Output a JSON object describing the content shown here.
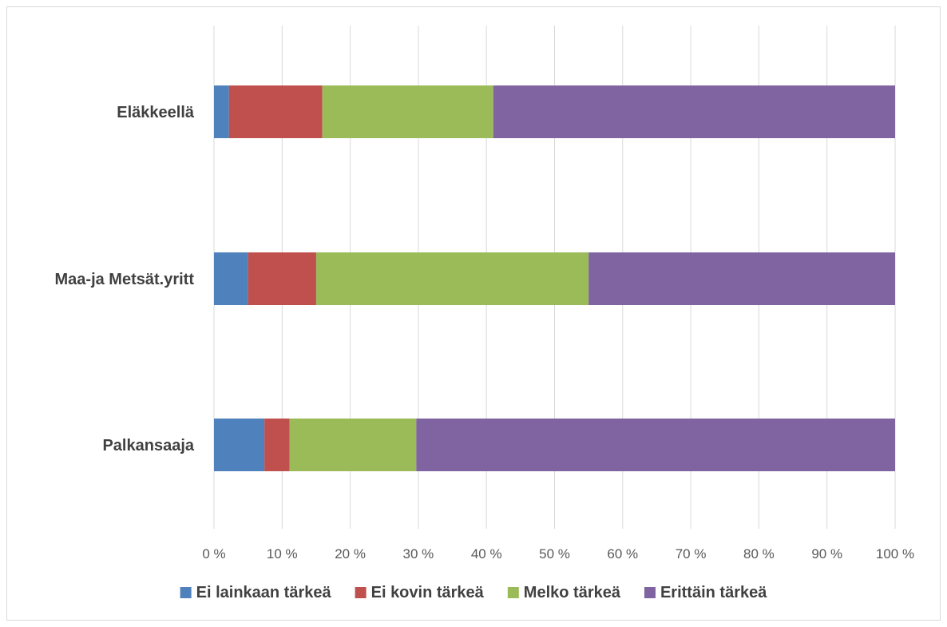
{
  "chart_data": {
    "type": "bar",
    "orientation": "horizontal",
    "stacked": "percent",
    "categories": [
      "Eläkkeellä",
      "Maa-ja Metsät.yritt",
      "Palkansaaja"
    ],
    "series": [
      {
        "name": "Ei lainkaan tärkeä",
        "color": "#4f81bd",
        "values": [
          2.2,
          5.0,
          7.4
        ]
      },
      {
        "name": "Ei kovin tärkeä",
        "color": "#c0504d",
        "values": [
          13.7,
          10.0,
          3.7
        ]
      },
      {
        "name": "Melko tärkeä",
        "color": "#9bbb59",
        "values": [
          25.1,
          40.0,
          18.6
        ]
      },
      {
        "name": "Erittäin tärkeä",
        "color": "#8064a2",
        "values": [
          59.0,
          45.0,
          70.3
        ]
      }
    ],
    "xlim": [
      0,
      100
    ],
    "xticks": [
      "0 %",
      "10 %",
      "20 %",
      "30 %",
      "40 %",
      "50 %",
      "60 %",
      "70 %",
      "80 %",
      "90 %",
      "100 %"
    ],
    "grid": true,
    "legend_position": "bottom",
    "title": "",
    "xlabel": "",
    "ylabel": ""
  }
}
